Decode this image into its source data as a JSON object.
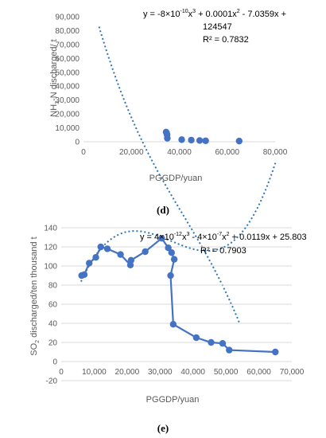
{
  "chart_data": [
    {
      "panel": "(d)",
      "type": "scatter",
      "xlabel": "PGGDP/yuan",
      "ylabel_parts": {
        "pre": "NH",
        "sub": "3",
        "post": "-N discharged/ t"
      },
      "xlim": [
        0,
        80000
      ],
      "ylim": [
        0,
        90000
      ],
      "x_ticks": [
        "0",
        "20,000",
        "40,000",
        "60,000",
        "80,000"
      ],
      "y_ticks": [
        "0",
        "10,000",
        "20,000",
        "30,000",
        "40,000",
        "50,000",
        "60,000",
        "70,000",
        "80,000",
        "90,000"
      ],
      "equation_parts": {
        "a": "y = -8×10",
        "a_exp": "-10",
        "b": "x",
        "b_exp": "3",
        "c": " + 0.0001x",
        "c_exp": "2",
        "d": " - 7.0359x +",
        "line2": "124547"
      },
      "r2": "R² = 0.7832",
      "trendline": {
        "type": "polynomial",
        "order": 3,
        "coefficients": [
          -8e-10,
          0.0001,
          -7.0359,
          124547
        ],
        "x_range": [
          6500,
          65000
        ]
      },
      "points": [
        {
          "x": 34500,
          "y": 7000
        },
        {
          "x": 34700,
          "y": 6300
        },
        {
          "x": 34900,
          "y": 5000
        },
        {
          "x": 35000,
          "y": 2500
        },
        {
          "x": 41000,
          "y": 1500
        },
        {
          "x": 45000,
          "y": 1200
        },
        {
          "x": 48500,
          "y": 900
        },
        {
          "x": 51000,
          "y": 700
        },
        {
          "x": 65000,
          "y": 500
        }
      ],
      "color": "#4472C4"
    },
    {
      "panel": "(e)",
      "type": "line",
      "xlabel": "PGGDP/yuan",
      "ylabel_parts": {
        "pre": "SO",
        "sub": "2",
        "post": " discharged/ten thousand t"
      },
      "xlim": [
        0,
        70000
      ],
      "ylim": [
        -20,
        140
      ],
      "x_ticks": [
        "0",
        "10,000",
        "20,000",
        "30,000",
        "40,000",
        "50,000",
        "60,000",
        "70,000"
      ],
      "y_ticks": [
        "-20",
        "0",
        "20",
        "40",
        "60",
        "80",
        "100",
        "120",
        "140"
      ],
      "equation_parts": {
        "a": "y = 4×10",
        "a_exp": "-12",
        "b": "x",
        "b_exp": "3",
        "c": " - 4×10",
        "c_exp": "-7",
        "d": "x",
        "d_exp": "2",
        "e": " + 0.0119x + 25.803"
      },
      "r2": "R² = 0.7903",
      "trendline": {
        "type": "polynomial",
        "order": 3,
        "coefficients": [
          4e-12,
          -4e-07,
          0.0119,
          25.803
        ],
        "x_range": [
          6000,
          65000
        ]
      },
      "points": [
        {
          "x": 6200,
          "y": 90
        },
        {
          "x": 7000,
          "y": 91
        },
        {
          "x": 8500,
          "y": 103
        },
        {
          "x": 10500,
          "y": 109
        },
        {
          "x": 12000,
          "y": 120
        },
        {
          "x": 14000,
          "y": 118
        },
        {
          "x": 18000,
          "y": 112
        },
        {
          "x": 21000,
          "y": 101
        },
        {
          "x": 21200,
          "y": 106
        },
        {
          "x": 25500,
          "y": 115
        },
        {
          "x": 30500,
          "y": 129
        },
        {
          "x": 32500,
          "y": 119
        },
        {
          "x": 33500,
          "y": 114
        },
        {
          "x": 34300,
          "y": 107
        },
        {
          "x": 33200,
          "y": 90
        },
        {
          "x": 34000,
          "y": 39
        },
        {
          "x": 41000,
          "y": 25
        },
        {
          "x": 45500,
          "y": 20
        },
        {
          "x": 49000,
          "y": 19
        },
        {
          "x": 51000,
          "y": 12
        },
        {
          "x": 65000,
          "y": 10
        }
      ],
      "color": "#4472C4"
    }
  ]
}
